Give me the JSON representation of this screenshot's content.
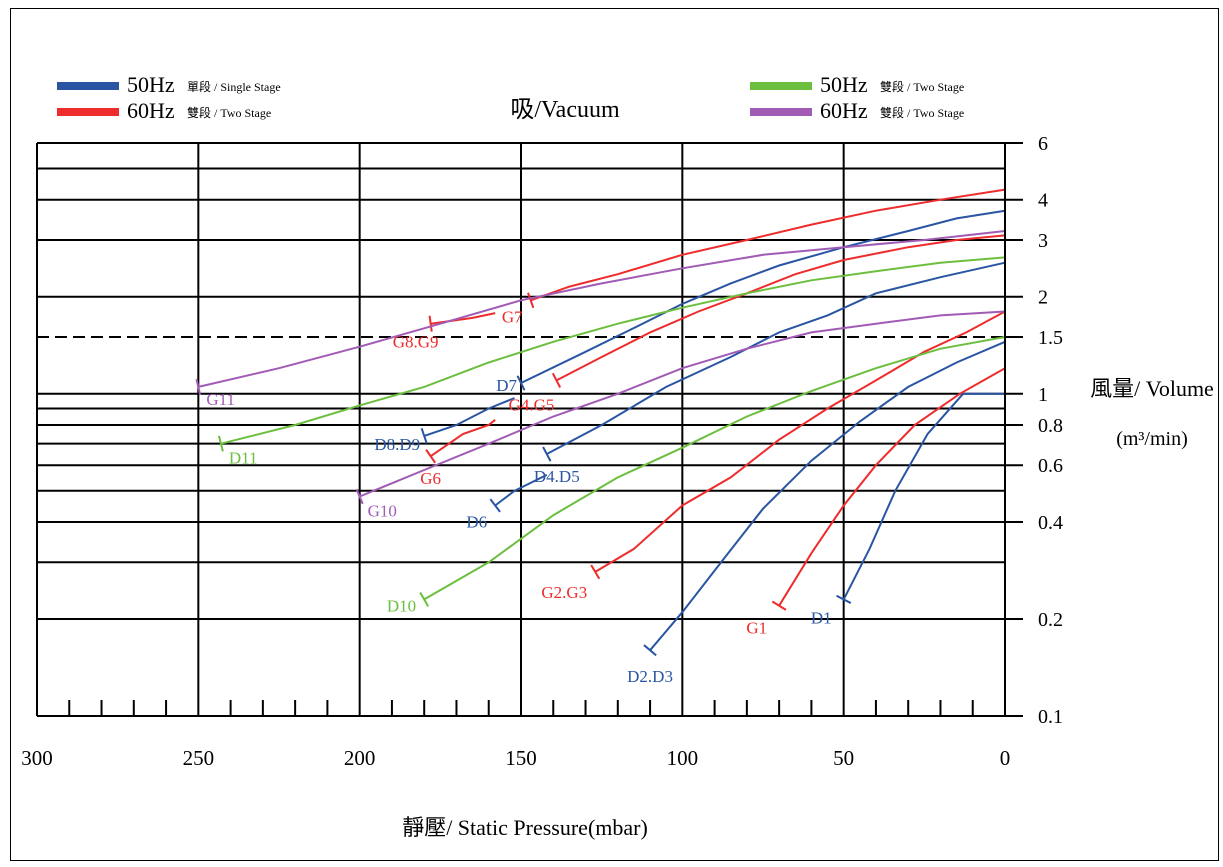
{
  "chart_data": {
    "type": "line",
    "title": "吸/Vacuum",
    "xlabel": "靜壓/ Static Pressure(mbar)",
    "ylabel": "風量/ Volume",
    "ylabel_unit": "(m³/min)",
    "x_scale": "reversed-linear",
    "y_scale": "log",
    "xlim": [
      300,
      0
    ],
    "ylim": [
      0.1,
      6
    ],
    "x_ticks": [
      300,
      250,
      200,
      150,
      100,
      50,
      0
    ],
    "x_tick_labels": [
      "300",
      "250",
      "200",
      "150",
      "100",
      "50",
      "0"
    ],
    "y_ticks": [
      0.1,
      0.2,
      0.4,
      0.6,
      0.8,
      1,
      1.5,
      2,
      3,
      4,
      6
    ],
    "y_tick_labels": [
      "0.1",
      "0.2",
      "0.4",
      "0.6",
      "0.8",
      "1",
      "1.5",
      "2",
      "3",
      "4",
      "6"
    ],
    "y_gridlines": [
      0.2,
      0.3,
      0.4,
      0.5,
      0.6,
      0.7,
      0.8,
      0.9,
      1,
      2,
      3,
      4,
      5,
      6
    ],
    "y_dashed_line": 1.5,
    "grid": true,
    "legend": [
      {
        "freq": "50Hz",
        "text": "單段 / Single Stage",
        "color": "#2a55a3"
      },
      {
        "freq": "60Hz",
        "text": "雙段 / Two Stage",
        "color": "#ee2c2c"
      },
      {
        "freq": "50Hz",
        "text": "雙段 / Two Stage",
        "color": "#6cbf3e"
      },
      {
        "freq": "60Hz",
        "text": "雙段 / Two Stage",
        "color": "#a15bb5"
      }
    ],
    "series": [
      {
        "name": "D1",
        "color": "#2a55a3",
        "points": [
          [
            50,
            0.23
          ],
          [
            42,
            0.33
          ],
          [
            34,
            0.5
          ],
          [
            24,
            0.75
          ],
          [
            13,
            1.0
          ],
          [
            0,
            1.0
          ]
        ]
      },
      {
        "name": "D2.D3",
        "color": "#2a55a3",
        "points": [
          [
            110,
            0.16
          ],
          [
            100,
            0.21
          ],
          [
            88,
            0.3
          ],
          [
            75,
            0.44
          ],
          [
            60,
            0.62
          ],
          [
            45,
            0.82
          ],
          [
            30,
            1.05
          ],
          [
            15,
            1.25
          ],
          [
            0,
            1.45
          ]
        ]
      },
      {
        "name": "D4.D5",
        "color": "#2a55a3",
        "points": [
          [
            142,
            0.65
          ],
          [
            125,
            0.8
          ],
          [
            105,
            1.05
          ],
          [
            85,
            1.3
          ],
          [
            70,
            1.55
          ],
          [
            55,
            1.75
          ],
          [
            40,
            2.05
          ],
          [
            20,
            2.3
          ],
          [
            0,
            2.55
          ]
        ]
      },
      {
        "name": "D6",
        "color": "#2a55a3",
        "points": [
          [
            158,
            0.45
          ],
          [
            152,
            0.5
          ],
          [
            142,
            0.56
          ]
        ]
      },
      {
        "name": "D7",
        "color": "#2a55a3",
        "points": [
          [
            150,
            1.08
          ],
          [
            130,
            1.35
          ],
          [
            115,
            1.6
          ],
          [
            100,
            1.9
          ],
          [
            85,
            2.2
          ],
          [
            70,
            2.5
          ],
          [
            50,
            2.85
          ],
          [
            30,
            3.2
          ],
          [
            15,
            3.5
          ],
          [
            0,
            3.7
          ]
        ]
      },
      {
        "name": "D8.D9",
        "color": "#2a55a3",
        "points": [
          [
            180,
            0.74
          ],
          [
            170,
            0.8
          ],
          [
            160,
            0.9
          ],
          [
            152,
            0.97
          ]
        ]
      },
      {
        "name": "G1",
        "color": "#ee2c2c",
        "points": [
          [
            70,
            0.22
          ],
          [
            60,
            0.32
          ],
          [
            50,
            0.45
          ],
          [
            40,
            0.6
          ],
          [
            28,
            0.8
          ],
          [
            14,
            1.0
          ],
          [
            0,
            1.2
          ]
        ]
      },
      {
        "name": "G2.G3",
        "color": "#ee2c2c",
        "points": [
          [
            127,
            0.28
          ],
          [
            115,
            0.33
          ],
          [
            100,
            0.45
          ],
          [
            85,
            0.55
          ],
          [
            70,
            0.72
          ],
          [
            55,
            0.9
          ],
          [
            40,
            1.1
          ],
          [
            25,
            1.35
          ],
          [
            12,
            1.55
          ],
          [
            0,
            1.8
          ]
        ]
      },
      {
        "name": "G4.G5",
        "color": "#ee2c2c",
        "points": [
          [
            139,
            1.1
          ],
          [
            125,
            1.3
          ],
          [
            110,
            1.55
          ],
          [
            95,
            1.8
          ],
          [
            80,
            2.05
          ],
          [
            65,
            2.35
          ],
          [
            50,
            2.6
          ],
          [
            30,
            2.85
          ],
          [
            15,
            3.0
          ],
          [
            0,
            3.1
          ]
        ]
      },
      {
        "name": "G6",
        "color": "#ee2c2c",
        "points": [
          [
            178,
            0.64
          ],
          [
            168,
            0.75
          ],
          [
            160,
            0.8
          ],
          [
            158,
            0.83
          ]
        ]
      },
      {
        "name": "G7",
        "color": "#ee2c2c",
        "points": [
          [
            147,
            1.95
          ],
          [
            135,
            2.15
          ],
          [
            120,
            2.35
          ],
          [
            100,
            2.7
          ],
          [
            80,
            3.0
          ],
          [
            60,
            3.35
          ],
          [
            40,
            3.7
          ],
          [
            20,
            4.0
          ],
          [
            0,
            4.3
          ]
        ]
      },
      {
        "name": "G8.G9",
        "color": "#ee2c2c",
        "points": [
          [
            178,
            1.65
          ],
          [
            165,
            1.72
          ],
          [
            158,
            1.78
          ]
        ]
      },
      {
        "name": "D10",
        "color": "#6cbf3e",
        "points": [
          [
            180,
            0.23
          ],
          [
            160,
            0.3
          ],
          [
            140,
            0.42
          ],
          [
            120,
            0.55
          ],
          [
            100,
            0.68
          ],
          [
            80,
            0.85
          ],
          [
            60,
            1.02
          ],
          [
            40,
            1.2
          ],
          [
            20,
            1.38
          ],
          [
            0,
            1.5
          ]
        ]
      },
      {
        "name": "D11",
        "color": "#6cbf3e",
        "points": [
          [
            243,
            0.7
          ],
          [
            220,
            0.8
          ],
          [
            200,
            0.92
          ],
          [
            180,
            1.05
          ],
          [
            160,
            1.25
          ],
          [
            140,
            1.45
          ],
          [
            120,
            1.65
          ],
          [
            100,
            1.85
          ],
          [
            80,
            2.05
          ],
          [
            60,
            2.25
          ],
          [
            40,
            2.4
          ],
          [
            20,
            2.55
          ],
          [
            0,
            2.65
          ]
        ]
      },
      {
        "name": "G10",
        "color": "#a15bb5",
        "points": [
          [
            200,
            0.48
          ],
          [
            180,
            0.58
          ],
          [
            160,
            0.7
          ],
          [
            140,
            0.85
          ],
          [
            120,
            1.0
          ],
          [
            100,
            1.2
          ],
          [
            80,
            1.38
          ],
          [
            60,
            1.55
          ],
          [
            40,
            1.65
          ],
          [
            20,
            1.75
          ],
          [
            0,
            1.8
          ]
        ]
      },
      {
        "name": "G11",
        "color": "#a15bb5",
        "points": [
          [
            250,
            1.05
          ],
          [
            225,
            1.2
          ],
          [
            200,
            1.4
          ],
          [
            175,
            1.65
          ],
          [
            150,
            1.95
          ],
          [
            125,
            2.2
          ],
          [
            100,
            2.45
          ],
          [
            75,
            2.7
          ],
          [
            50,
            2.85
          ],
          [
            25,
            3.0
          ],
          [
            0,
            3.2
          ]
        ]
      }
    ]
  }
}
